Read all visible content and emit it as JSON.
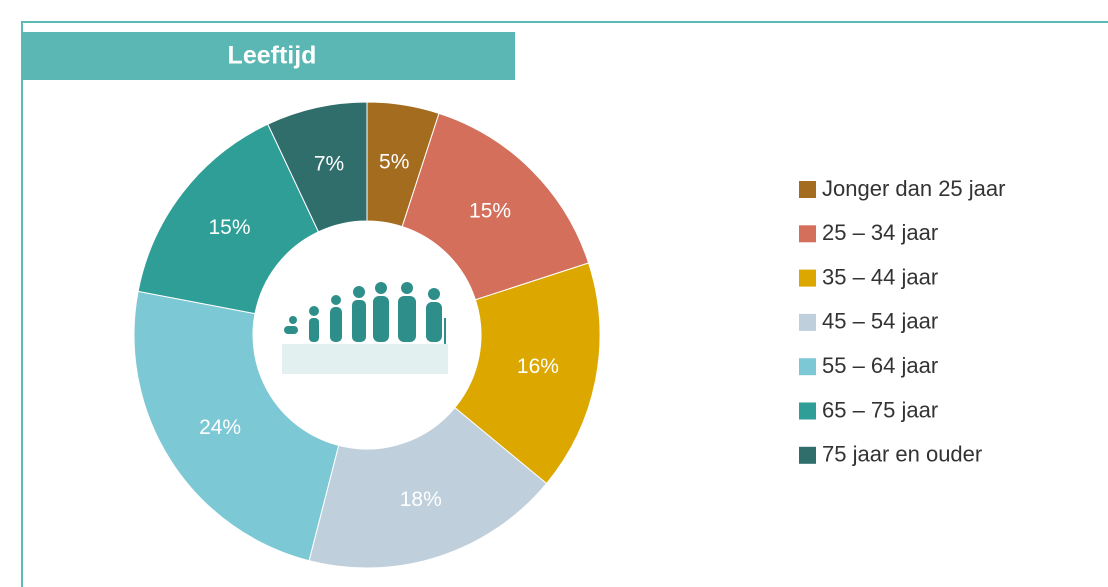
{
  "chart_data": {
    "type": "donut",
    "title": "Leeftijd",
    "categories": [
      "Jonger dan 25 jaar",
      "25 – 34 jaar",
      "35 – 44 jaar",
      "45 – 54 jaar",
      "55 – 64 jaar",
      "65 – 75 jaar",
      "75 jaar en ouder"
    ],
    "values": [
      5,
      15,
      16,
      18,
      24,
      15,
      7
    ],
    "value_labels": [
      "5%",
      "15%",
      "16%",
      "18%",
      "24%",
      "15%",
      "7%"
    ],
    "colors": [
      "#a46c1f",
      "#d46f5b",
      "#dca800",
      "#bfcfdc",
      "#7cc8d4",
      "#2e9e97",
      "#2f6e6b"
    ],
    "legend": "right"
  }
}
